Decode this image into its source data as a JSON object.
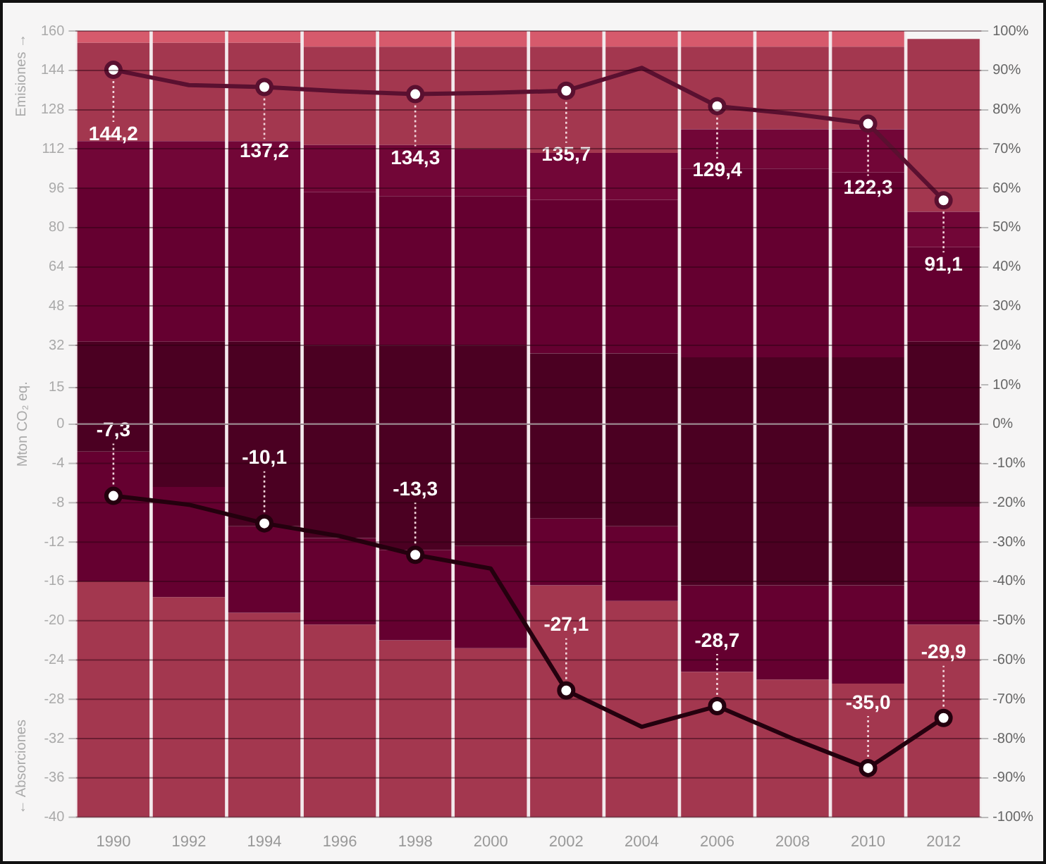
{
  "chart_data": {
    "type": "bar",
    "stacked": true,
    "ylabel": "Mton CO₂ eq.",
    "annotations": [
      "Emisiones →",
      "← Absorciones"
    ],
    "categories": [
      "1990",
      "1992",
      "1994",
      "1996",
      "1998",
      "2000",
      "2002",
      "2004",
      "2006",
      "2008",
      "2010",
      "2012"
    ],
    "series": [
      {
        "axis": "y2",
        "color": "#4b0022",
        "values": [
          21,
          21,
          21,
          20,
          20,
          20,
          18,
          18,
          17,
          17,
          17,
          21
        ]
      },
      {
        "axis": "y2",
        "color": "#650030",
        "values": [
          39,
          39,
          39,
          39,
          38,
          38,
          39,
          39,
          48,
          48,
          47,
          24
        ]
      },
      {
        "axis": "y2",
        "color": "#720637",
        "values": [
          12,
          12,
          12,
          12,
          13,
          12,
          12,
          12,
          10,
          10,
          11,
          9
        ]
      },
      {
        "axis": "y2",
        "color": "#a3374f",
        "values": [
          25,
          25,
          25,
          25,
          25,
          26,
          27,
          27,
          21,
          21,
          21,
          44
        ]
      },
      {
        "axis": "y2",
        "color": "#d65a6c",
        "values": [
          3,
          3,
          3,
          4,
          4,
          4,
          4,
          4,
          4,
          4,
          4,
          null
        ]
      },
      {
        "axis": "y2",
        "color": "#4b0022",
        "values": [
          -7,
          -16,
          -26,
          -29,
          -32,
          -31,
          -24,
          -26,
          -41,
          -41,
          -41,
          -21
        ]
      },
      {
        "axis": "y2",
        "color": "#650030",
        "values": [
          -33,
          -28,
          -22,
          -22,
          -23,
          -26,
          -17,
          -19,
          -22,
          -24,
          -25,
          -30
        ]
      },
      {
        "axis": "y2",
        "color": "#a3374f",
        "values": [
          -60,
          -56,
          -52,
          -49,
          -45,
          -43,
          -59,
          -55,
          -37,
          -35,
          -34,
          -49
        ]
      },
      {
        "type": "line",
        "axis": "y",
        "color": "#5a1030",
        "values": [
          144.2,
          138.0,
          137.2,
          135.5,
          134.3,
          134.8,
          135.7,
          145.0,
          129.4,
          126.3,
          122.3,
          91.1
        ],
        "value_labels": [
          "144,2",
          null,
          "137,2",
          null,
          "134,3",
          null,
          "135,7",
          null,
          "129,4",
          null,
          "122,3",
          "91,1"
        ]
      },
      {
        "type": "line",
        "axis": "y3",
        "color": "#24000e",
        "values": [
          -7.3,
          -8.2,
          -10.1,
          -11.4,
          -13.3,
          -14.7,
          -27.1,
          -30.8,
          -28.7,
          -32.0,
          -35.0,
          -29.9
        ],
        "value_labels": [
          "-7,3",
          null,
          "-10,1",
          null,
          "-13,3",
          null,
          "-27,1",
          null,
          "-28,7",
          null,
          "-35,0",
          "-29,9"
        ]
      }
    ],
    "ylim": [
      -160,
      160
    ],
    "yticks": [
      0,
      15,
      32,
      48,
      64,
      80,
      96,
      112,
      128,
      144,
      160
    ],
    "y3lim": [
      -40,
      40
    ],
    "y3ticks": [
      -4,
      -8,
      -12,
      -16,
      -20,
      -24,
      -28,
      -32,
      -36,
      -40
    ],
    "y2lim": [
      -100,
      100
    ],
    "y2ticks": [
      {
        "value": -100,
        "label": "-100%"
      },
      {
        "value": -90,
        "label": "-90%"
      },
      {
        "value": -80,
        "label": "-80%"
      },
      {
        "value": -70,
        "label": "-70%"
      },
      {
        "value": -60,
        "label": "-60%"
      },
      {
        "value": -50,
        "label": "-50%"
      },
      {
        "value": -40,
        "label": "-40%"
      },
      {
        "value": -30,
        "label": "-30%"
      },
      {
        "value": -20,
        "label": "-20%"
      },
      {
        "value": -10,
        "label": "-10%"
      },
      {
        "value": 0,
        "label": "0%"
      },
      {
        "value": 10,
        "label": "10%"
      },
      {
        "value": 20,
        "label": "20%"
      },
      {
        "value": 30,
        "label": "30%"
      },
      {
        "value": 40,
        "label": "40%"
      },
      {
        "value": 50,
        "label": "50%"
      },
      {
        "value": 60,
        "label": "60%"
      },
      {
        "value": 70,
        "label": "70%"
      },
      {
        "value": 80,
        "label": "80%"
      },
      {
        "value": 90,
        "label": "90%"
      },
      {
        "value": 100,
        "label": "100%"
      }
    ],
    "grid": "y",
    "marker": "circle"
  }
}
